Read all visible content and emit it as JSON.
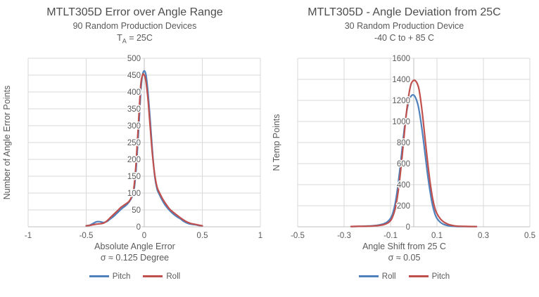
{
  "page": {
    "background": "#ffffff"
  },
  "colors": {
    "series_blue": "#4F81BD",
    "series_red": "#C0504D",
    "gridline": "#D9D9D9",
    "axis_line": "#BFBFBF",
    "text": "#595959",
    "title_text": "#4d4d4d"
  },
  "chart_data": [
    {
      "type": "line",
      "title": "MTLT305D Error over Angle Range",
      "subtitle": "90 Random Production Devices",
      "condition": {
        "pre": "T",
        "sub": "A",
        "post": " = 25C"
      },
      "xlabel": "Absolute Angle Error",
      "xlabel2": "σ ≈ 0.125 Degree",
      "ylabel": "Number of Angle Error Points",
      "xlim": [
        -1,
        1
      ],
      "ylim": [
        0,
        500
      ],
      "xticks": [
        -1,
        -0.5,
        0,
        0.5,
        1
      ],
      "yticks": [
        0,
        50,
        100,
        150,
        200,
        250,
        300,
        350,
        400,
        450,
        500
      ],
      "grid": true,
      "legend_position": "bottom",
      "series": [
        {
          "name": "Pitch",
          "color": "#4F81BD",
          "points": [
            [
              -0.5,
              3
            ],
            [
              -0.47,
              5
            ],
            [
              -0.44,
              10
            ],
            [
              -0.41,
              15
            ],
            [
              -0.38,
              15
            ],
            [
              -0.35,
              13
            ],
            [
              -0.32,
              16
            ],
            [
              -0.29,
              24
            ],
            [
              -0.26,
              32
            ],
            [
              -0.23,
              42
            ],
            [
              -0.2,
              52
            ],
            [
              -0.17,
              60
            ],
            [
              -0.15,
              66
            ],
            [
              -0.13,
              74
            ],
            [
              -0.11,
              85
            ],
            [
              -0.09,
              105
            ],
            [
              -0.07,
              170
            ],
            [
              -0.05,
              280
            ],
            [
              -0.03,
              400
            ],
            [
              -0.015,
              450
            ],
            [
              0,
              463
            ],
            [
              0.015,
              450
            ],
            [
              0.03,
              405
            ],
            [
              0.05,
              320
            ],
            [
              0.07,
              225
            ],
            [
              0.09,
              150
            ],
            [
              0.11,
              112
            ],
            [
              0.13,
              96
            ],
            [
              0.15,
              82
            ],
            [
              0.17,
              70
            ],
            [
              0.19,
              60
            ],
            [
              0.22,
              48
            ],
            [
              0.25,
              38
            ],
            [
              0.28,
              30
            ],
            [
              0.31,
              24
            ],
            [
              0.34,
              16
            ],
            [
              0.37,
              11
            ],
            [
              0.4,
              8
            ],
            [
              0.44,
              6
            ],
            [
              0.47,
              4
            ],
            [
              0.5,
              3
            ]
          ]
        },
        {
          "name": "Roll",
          "color": "#C0504D",
          "points": [
            [
              -0.5,
              3
            ],
            [
              -0.47,
              4
            ],
            [
              -0.44,
              6
            ],
            [
              -0.41,
              8
            ],
            [
              -0.38,
              9
            ],
            [
              -0.35,
              11
            ],
            [
              -0.32,
              18
            ],
            [
              -0.29,
              28
            ],
            [
              -0.26,
              38
            ],
            [
              -0.23,
              48
            ],
            [
              -0.2,
              58
            ],
            [
              -0.17,
              65
            ],
            [
              -0.15,
              70
            ],
            [
              -0.13,
              76
            ],
            [
              -0.11,
              88
            ],
            [
              -0.09,
              115
            ],
            [
              -0.07,
              190
            ],
            [
              -0.05,
              310
            ],
            [
              -0.03,
              420
            ],
            [
              -0.015,
              450
            ],
            [
              -0.005,
              452
            ],
            [
              0.01,
              440
            ],
            [
              0.03,
              385
            ],
            [
              0.05,
              300
            ],
            [
              0.07,
              215
            ],
            [
              0.09,
              155
            ],
            [
              0.11,
              118
            ],
            [
              0.13,
              102
            ],
            [
              0.15,
              88
            ],
            [
              0.17,
              76
            ],
            [
              0.19,
              66
            ],
            [
              0.22,
              52
            ],
            [
              0.25,
              43
            ],
            [
              0.28,
              35
            ],
            [
              0.31,
              27
            ],
            [
              0.34,
              20
            ],
            [
              0.37,
              14
            ],
            [
              0.4,
              10
            ],
            [
              0.44,
              7
            ],
            [
              0.47,
              5
            ],
            [
              0.5,
              3
            ]
          ]
        }
      ]
    },
    {
      "type": "line",
      "title": "MTLT305D - Angle Deviation from 25C",
      "subtitle": "30 Random Production Device",
      "condition": {
        "pre": "-40 C to + 85 C",
        "sub": "",
        "post": ""
      },
      "xlabel": "Angle Shift from 25 C",
      "xlabel2": "σ ≈ 0.05",
      "ylabel": "N Temp Points",
      "xlim": [
        -0.5,
        0.5
      ],
      "ylim": [
        0,
        1600
      ],
      "xticks": [
        -0.5,
        -0.3,
        -0.1,
        0.1,
        0.3,
        0.5
      ],
      "yticks": [
        0,
        200,
        400,
        600,
        800,
        1000,
        1200,
        1400,
        1600
      ],
      "grid": true,
      "legend_position": "bottom",
      "series": [
        {
          "name": "Roll",
          "color": "#4F81BD",
          "points": [
            [
              -0.27,
              3
            ],
            [
              -0.24,
              4
            ],
            [
              -0.21,
              6
            ],
            [
              -0.19,
              8
            ],
            [
              -0.17,
              11
            ],
            [
              -0.15,
              17
            ],
            [
              -0.13,
              28
            ],
            [
              -0.115,
              45
            ],
            [
              -0.1,
              80
            ],
            [
              -0.09,
              130
            ],
            [
              -0.08,
              220
            ],
            [
              -0.07,
              360
            ],
            [
              -0.06,
              540
            ],
            [
              -0.05,
              740
            ],
            [
              -0.04,
              940
            ],
            [
              -0.03,
              1100
            ],
            [
              -0.02,
              1200
            ],
            [
              -0.01,
              1245
            ],
            [
              0,
              1250
            ],
            [
              0.01,
              1215
            ],
            [
              0.02,
              1140
            ],
            [
              0.03,
              1010
            ],
            [
              0.04,
              850
            ],
            [
              0.05,
              670
            ],
            [
              0.06,
              490
            ],
            [
              0.07,
              340
            ],
            [
              0.08,
              215
            ],
            [
              0.09,
              130
            ],
            [
              0.1,
              80
            ],
            [
              0.115,
              42
            ],
            [
              0.13,
              22
            ],
            [
              0.15,
              10
            ],
            [
              0.17,
              5
            ],
            [
              0.19,
              3
            ],
            [
              0.22,
              2
            ],
            [
              0.25,
              2
            ],
            [
              0.27,
              2
            ]
          ]
        },
        {
          "name": "Pitch",
          "color": "#C0504D",
          "points": [
            [
              -0.27,
              3
            ],
            [
              -0.24,
              4
            ],
            [
              -0.21,
              5
            ],
            [
              -0.19,
              6
            ],
            [
              -0.17,
              9
            ],
            [
              -0.15,
              13
            ],
            [
              -0.13,
              20
            ],
            [
              -0.115,
              32
            ],
            [
              -0.1,
              58
            ],
            [
              -0.09,
              100
            ],
            [
              -0.08,
              170
            ],
            [
              -0.07,
              290
            ],
            [
              -0.06,
              460
            ],
            [
              -0.05,
              670
            ],
            [
              -0.04,
              900
            ],
            [
              -0.03,
              1110
            ],
            [
              -0.02,
              1270
            ],
            [
              -0.01,
              1365
            ],
            [
              0.005,
              1390
            ],
            [
              0.02,
              1330
            ],
            [
              0.03,
              1200
            ],
            [
              0.04,
              1020
            ],
            [
              0.05,
              810
            ],
            [
              0.06,
              610
            ],
            [
              0.07,
              430
            ],
            [
              0.08,
              285
            ],
            [
              0.09,
              185
            ],
            [
              0.1,
              125
            ],
            [
              0.115,
              75
            ],
            [
              0.13,
              45
            ],
            [
              0.15,
              22
            ],
            [
              0.17,
              11
            ],
            [
              0.19,
              6
            ],
            [
              0.22,
              4
            ],
            [
              0.25,
              3
            ],
            [
              0.27,
              2
            ]
          ]
        }
      ]
    }
  ]
}
